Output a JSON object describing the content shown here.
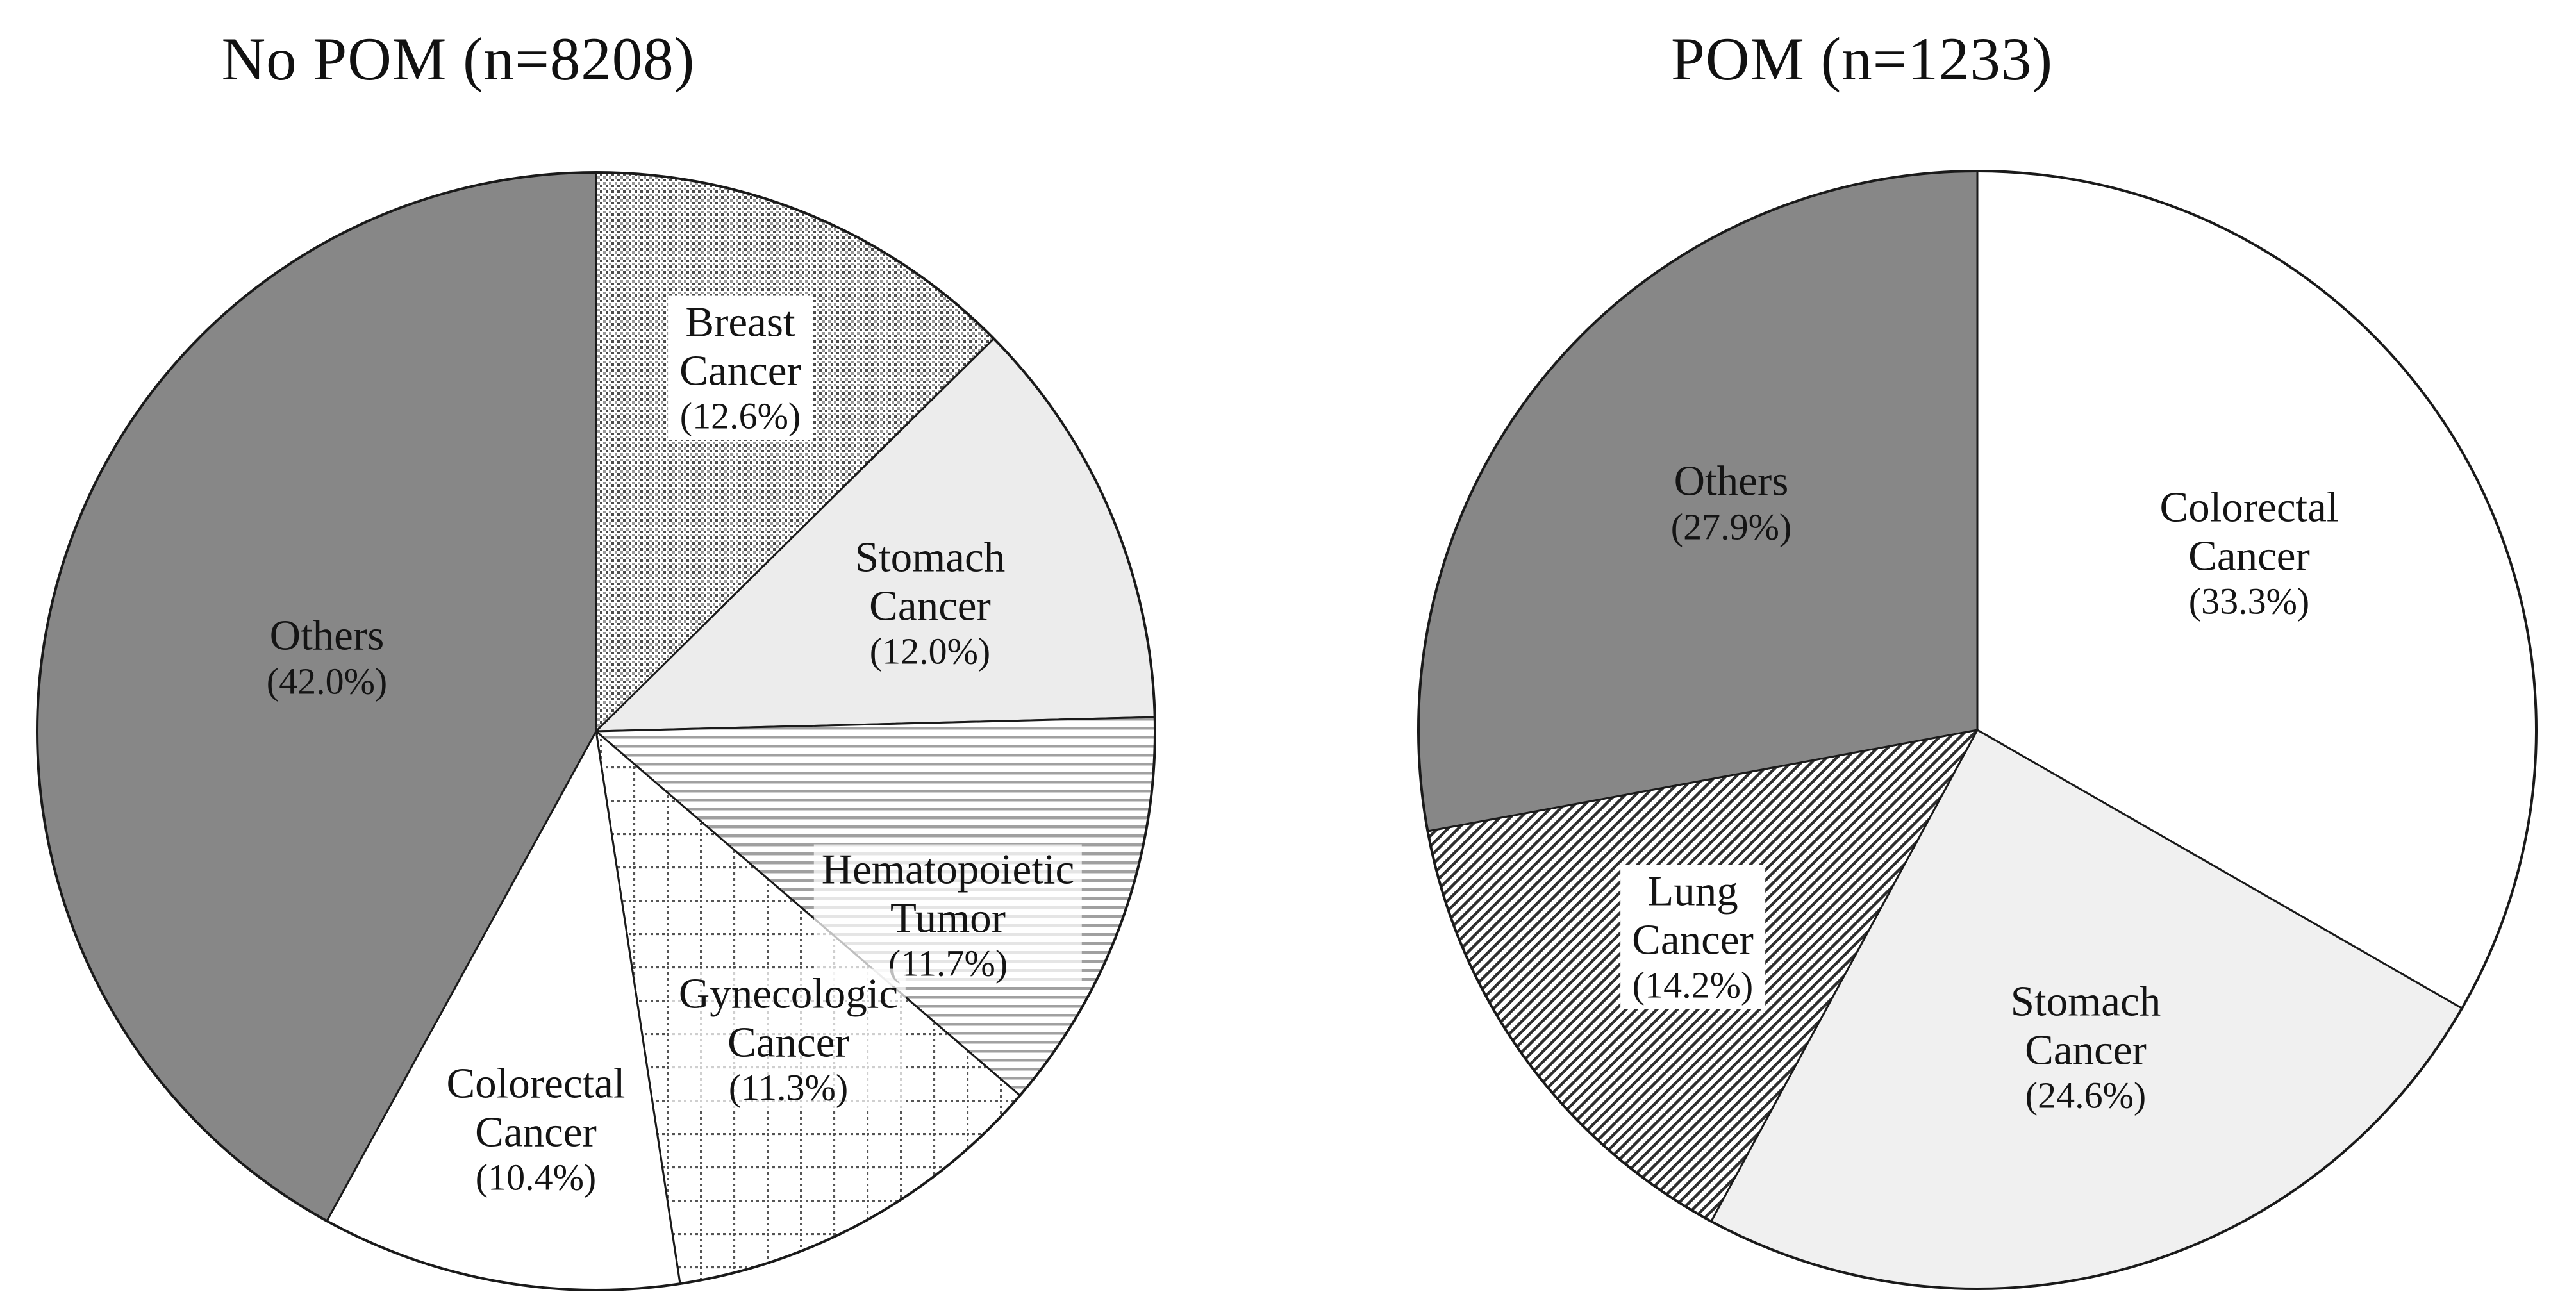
{
  "figure": {
    "background": "#ffffff",
    "text_color": "#141414",
    "others_gray": "#878787",
    "outline_color": "#1a1a1a"
  },
  "chart_data": [
    {
      "type": "pie",
      "title": "No POM (n=8208)",
      "start_angle_deg": 0,
      "direction": "clockwise",
      "legend_position": "labels-inside-slices",
      "slices": [
        {
          "label": "Breast Cancer",
          "value_pct": 12.6,
          "lines": [
            "Breast",
            "Cancer",
            "(12.6%)"
          ],
          "fill": "dots",
          "label_bg": "solid"
        },
        {
          "label": "Stomach Cancer",
          "value_pct": 12.0,
          "lines": [
            "Stomach",
            "Cancer",
            "(12.0%)"
          ],
          "fill": "#ececec",
          "label_bg": "none"
        },
        {
          "label": "Hematopoietic Tumor",
          "value_pct": 11.7,
          "lines": [
            "Hematopoietic",
            "Tumor",
            "(11.7%)"
          ],
          "fill": "hlines",
          "label_bg": "soft"
        },
        {
          "label": "Gynecologic Cancer",
          "value_pct": 11.3,
          "lines": [
            "Gynecologic",
            "Cancer",
            "(11.3%)"
          ],
          "fill": "grid",
          "label_bg": "soft"
        },
        {
          "label": "Colorectal Cancer",
          "value_pct": 10.4,
          "lines": [
            "Colorectal",
            "Cancer",
            "(10.4%)"
          ],
          "fill": "#ffffff",
          "label_bg": "none"
        },
        {
          "label": "Others",
          "value_pct": 42.0,
          "lines": [
            "Others",
            "(42.0%)"
          ],
          "fill": "#878787",
          "label_bg": "none"
        }
      ]
    },
    {
      "type": "pie",
      "title": "POM (n=1233)",
      "start_angle_deg": 0,
      "direction": "clockwise",
      "legend_position": "labels-inside-slices",
      "slices": [
        {
          "label": "Colorectal Cancer",
          "value_pct": 33.3,
          "lines": [
            "Colorectal",
            "Cancer",
            "(33.3%)"
          ],
          "fill": "#ffffff",
          "label_bg": "none"
        },
        {
          "label": "Stomach Cancer",
          "value_pct": 24.6,
          "lines": [
            "Stomach",
            "Cancer",
            "(24.6%)"
          ],
          "fill": "#f0f0f0",
          "label_bg": "none"
        },
        {
          "label": "Lung Cancer",
          "value_pct": 14.2,
          "lines": [
            "Lung",
            "Cancer",
            "(14.2%)"
          ],
          "fill": "diag",
          "label_bg": "solid"
        },
        {
          "label": "Others",
          "value_pct": 27.9,
          "lines": [
            "Others",
            "(27.9%)"
          ],
          "fill": "#878787",
          "label_bg": "none"
        }
      ]
    }
  ]
}
